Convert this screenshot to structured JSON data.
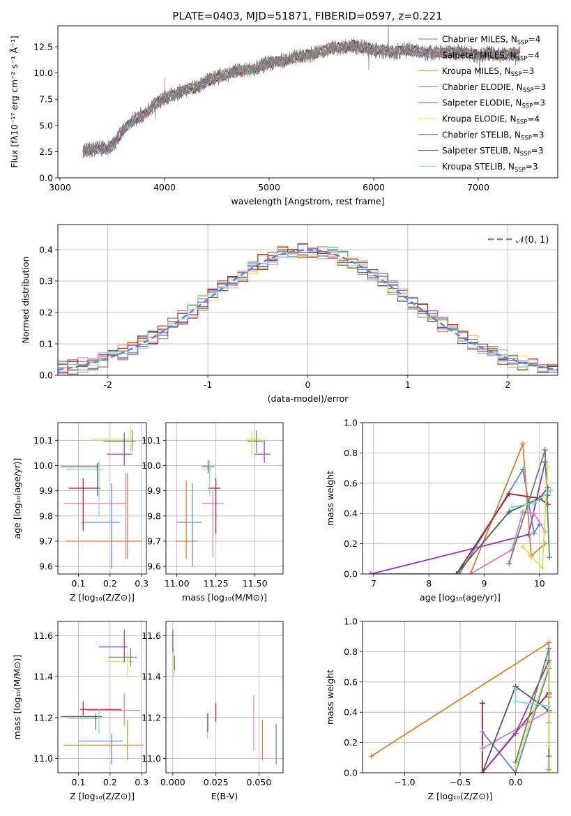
{
  "figure": {
    "title": "PLATE=0403, MJD=51871, FIBERID=0597, z=0.221"
  },
  "chart_data": [
    {
      "id": "spectrum",
      "type": "line",
      "xlabel": "wavelength [Angstrom, rest frame]",
      "ylabel": "Flux [fλ10⁻¹⁷ erg cm⁻² s⁻¹ Å⁻¹]",
      "xlim": [
        2980,
        7760
      ],
      "ylim": [
        0,
        14.5
      ],
      "xticks": [
        3000,
        4000,
        5000,
        6000,
        7000
      ],
      "yticks": [
        0.0,
        2.5,
        5.0,
        7.5,
        10.0,
        12.5
      ],
      "grid": false,
      "legend_placement": "right",
      "data_x_range": [
        3220,
        7400
      ],
      "envelope": {
        "x": [
          3220,
          3300,
          3400,
          3500,
          3600,
          3700,
          3800,
          3900,
          4000,
          4100,
          4200,
          4300,
          4400,
          4500,
          4600,
          4700,
          4800,
          4900,
          5000,
          5100,
          5200,
          5300,
          5400,
          5500,
          5600,
          5700,
          5800,
          5900,
          6000,
          6100,
          6200,
          6300,
          6400,
          6500,
          6600,
          6700,
          6800,
          6900,
          7000,
          7100,
          7200,
          7300,
          7400
        ],
        "y": [
          2.5,
          2.7,
          2.8,
          3.0,
          4.5,
          5.5,
          6.0,
          7.0,
          7.6,
          8.0,
          8.4,
          8.6,
          9.2,
          9.6,
          9.9,
          10.2,
          10.3,
          10.5,
          11.0,
          11.1,
          11.3,
          11.6,
          11.8,
          12.1,
          12.4,
          12.4,
          12.6,
          12.4,
          12.2,
          12.1,
          12.0,
          12.2,
          12.1,
          11.9,
          12.0,
          11.9,
          12.0,
          11.9,
          11.7,
          11.9,
          11.7,
          11.8,
          11.8
        ]
      },
      "series": [
        {
          "name": "Chabrier MILES, N_SSP=4",
          "color": "#5b84d6"
        },
        {
          "name": "Salpeter MILES, N_SSP=4",
          "color": "#e377c2"
        },
        {
          "name": "Kroupa MILES, N_SSP=3",
          "color": "#e07b2a"
        },
        {
          "name": "Chabrier ELODIE, N_SSP=3",
          "color": "#5a8a5a"
        },
        {
          "name": "Salpeter ELODIE, N_SSP=3",
          "color": "#9b30c0"
        },
        {
          "name": "Kroupa ELODIE, N_SSP=4",
          "color": "#d4e84a"
        },
        {
          "name": "Chabrier STELIB, N_SSP=3",
          "color": "#555555"
        },
        {
          "name": "Salpeter STELIB, N_SSP=3",
          "color": "#b0171f"
        },
        {
          "name": "Kroupa STELIB, N_SSP=3",
          "color": "#7fd6d6"
        }
      ]
    },
    {
      "id": "residuals",
      "type": "line",
      "xlabel": "(data-model)/error",
      "ylabel": "Normed distribution",
      "xlim": [
        -2.5,
        2.5
      ],
      "ylim": [
        0,
        0.48
      ],
      "xticks": [
        -2,
        -1,
        0,
        1,
        2
      ],
      "yticks": [
        0.0,
        0.1,
        0.2,
        0.3,
        0.4
      ],
      "grid": true,
      "legend_placement": "top-right",
      "legend": "𝒩(0, 1)",
      "reference": {
        "name": "𝒩(0, 1)",
        "mu": 0,
        "sigma": 1,
        "color": "#5b84d6"
      }
    },
    {
      "id": "z-age",
      "type": "scatter",
      "xlabel": "Z [log₁₀(Z/Z⊙)]",
      "ylabel": "age  [log₁₀(age/yr)]",
      "xlim": [
        0.035,
        0.315
      ],
      "ylim": [
        9.57,
        10.17
      ],
      "xticks": [
        0.1,
        0.2,
        0.3
      ],
      "xtick_labels": [
        "0.1",
        "0.2",
        "0.3"
      ],
      "yticks": [
        9.6,
        9.7,
        9.8,
        9.9,
        10.0,
        10.1
      ],
      "grid": true,
      "points": [
        {
          "color": "#e07b2a",
          "x": 0.18,
          "xerr": 0.12,
          "y": 9.7,
          "yerr": 0.0
        },
        {
          "color": "#5b84d6",
          "x": 0.17,
          "xerr": 0.06,
          "y": 9.775,
          "yerr": 0.0
        },
        {
          "color": "#e377c2",
          "x": 0.155,
          "xerr": 0.1,
          "y": 9.85,
          "yerr": 0.0
        },
        {
          "color": "#b0171f",
          "x": 0.12,
          "xerr": 0.05,
          "y": 9.91,
          "yerr": 0.0
        },
        {
          "color": "#7fd6d6",
          "x": 0.12,
          "xerr": 0.06,
          "y": 9.985,
          "yerr": 0.0
        },
        {
          "color": "#555555",
          "x": 0.105,
          "xerr": 0.06,
          "y": 9.995,
          "yerr": 0.0
        },
        {
          "color": "#9b30c0",
          "x": 0.23,
          "xerr": 0.04,
          "y": 10.045,
          "yerr": 0.0
        },
        {
          "color": "#d4e84a",
          "x": 0.2,
          "xerr": 0.06,
          "y": 10.105,
          "yerr": 0.0
        },
        {
          "color": "#5a8a5a",
          "x": 0.23,
          "xerr": 0.05,
          "y": 10.095,
          "yerr": 0.0
        }
      ],
      "vlines": [
        {
          "color": "#5b84d6",
          "x": 0.205,
          "y0": 9.59,
          "y1": 9.93
        },
        {
          "color": "#e07b2a",
          "x": 0.255,
          "y0": 9.63,
          "y1": 9.97
        },
        {
          "color": "#e377c2",
          "x": 0.25,
          "y0": 9.63,
          "y1": 9.97
        },
        {
          "color": "#b0171f",
          "x": 0.115,
          "y0": 9.74,
          "y1": 9.95
        },
        {
          "color": "#7fd6d6",
          "x": 0.165,
          "y0": 9.8,
          "y1": 10.02
        },
        {
          "color": "#555555",
          "x": 0.16,
          "y0": 9.88,
          "y1": 10.01
        },
        {
          "color": "#9b30c0",
          "x": 0.245,
          "y0": 10.0,
          "y1": 10.13
        },
        {
          "color": "#d4e84a",
          "x": 0.265,
          "y0": 10.05,
          "y1": 10.15
        },
        {
          "color": "#5a8a5a",
          "x": 0.27,
          "y0": 10.06,
          "y1": 10.14
        }
      ]
    },
    {
      "id": "mass-age",
      "type": "scatter",
      "xlabel": "mass [log₁₀(M/M⊙)]",
      "ylabel": "",
      "xlim": [
        10.93,
        11.68
      ],
      "ylim": [
        9.57,
        10.17
      ],
      "xticks": [
        11.0,
        11.25,
        11.5
      ],
      "xtick_labels": [
        "11.00",
        "11.25",
        "11.50"
      ],
      "yticks": [
        9.6,
        9.7,
        9.8,
        9.9,
        10.0,
        10.1
      ],
      "grid": true,
      "points": [
        {
          "color": "#e07b2a",
          "x": 11.06,
          "xerr": 0.07,
          "y": 9.7
        },
        {
          "color": "#5b84d6",
          "x": 11.08,
          "xerr": 0.08,
          "y": 9.775
        },
        {
          "color": "#e377c2",
          "x": 11.23,
          "xerr": 0.07,
          "y": 9.85
        },
        {
          "color": "#b0171f",
          "x": 11.24,
          "xerr": 0.04,
          "y": 9.91
        },
        {
          "color": "#7fd6d6",
          "x": 11.19,
          "xerr": 0.03,
          "y": 9.985
        },
        {
          "color": "#555555",
          "x": 11.2,
          "xerr": 0.04,
          "y": 9.995
        },
        {
          "color": "#9b30c0",
          "x": 11.55,
          "xerr": 0.05,
          "y": 10.045
        },
        {
          "color": "#d4e84a",
          "x": 11.49,
          "xerr": 0.05,
          "y": 10.105
        },
        {
          "color": "#5a8a5a",
          "x": 11.5,
          "xerr": 0.05,
          "y": 10.095
        }
      ],
      "vlines": [
        {
          "color": "#5b84d6",
          "x": 11.1,
          "y0": 9.6,
          "y1": 9.93
        },
        {
          "color": "#e07b2a",
          "x": 11.06,
          "y0": 9.63,
          "y1": 9.94
        },
        {
          "color": "#b0171f",
          "x": 11.25,
          "y0": 9.73,
          "y1": 9.95
        },
        {
          "color": "#e377c2",
          "x": 11.23,
          "y0": 9.64,
          "y1": 9.9
        },
        {
          "color": "#7fd6d6",
          "x": 11.21,
          "y0": 9.88,
          "y1": 10.02
        },
        {
          "color": "#555555",
          "x": 11.2,
          "y0": 9.97,
          "y1": 10.02
        },
        {
          "color": "#9b30c0",
          "x": 11.56,
          "y0": 10.01,
          "y1": 10.1
        },
        {
          "color": "#d4e84a",
          "x": 11.48,
          "y0": 10.04,
          "y1": 10.14
        },
        {
          "color": "#5a8a5a",
          "x": 11.51,
          "y0": 10.05,
          "y1": 10.14
        }
      ]
    },
    {
      "id": "age-weight",
      "type": "line",
      "xlabel": "age  [log₁₀(age/yr)]",
      "ylabel": "mass weight",
      "xlim": [
        6.8,
        10.33
      ],
      "ylim": [
        0,
        1.0
      ],
      "xticks": [
        7,
        8,
        9,
        10
      ],
      "yticks": [
        0.0,
        0.2,
        0.4,
        0.6,
        0.8,
        1.0
      ],
      "grid": true,
      "series": [
        {
          "color": "#9b30c0",
          "x": [
            6.95,
            9.8,
            10.1,
            10.15
          ],
          "y": [
            0.0,
            0.26,
            0.74,
            0.52
          ]
        },
        {
          "color": "#5b84d6",
          "x": [
            6.95,
            8.55,
            9.7,
            9.9,
            10.0
          ],
          "y": [
            0.0,
            0.0,
            0.69,
            0.27,
            0.33
          ]
        },
        {
          "color": "#e07b2a",
          "x": [
            8.75,
            9.7,
            9.85,
            10.1
          ],
          "y": [
            0.0,
            0.86,
            0.12,
            0.2
          ]
        },
        {
          "color": "#e377c2",
          "x": [
            8.75,
            9.5,
            9.7,
            9.9,
            10.1
          ],
          "y": [
            0.0,
            0.16,
            0.41,
            0.4,
            0.28
          ]
        },
        {
          "color": "#b0171f",
          "x": [
            8.5,
            9.45,
            10.0,
            10.15
          ],
          "y": [
            0.0,
            0.53,
            0.5,
            0.46
          ]
        },
        {
          "color": "#555555",
          "x": [
            8.5,
            9.45,
            10.0,
            10.15
          ],
          "y": [
            0.0,
            0.41,
            0.5,
            0.57
          ]
        },
        {
          "color": "#5a8a5a",
          "x": [
            9.45,
            10.1,
            10.18
          ],
          "y": [
            0.07,
            0.82,
            0.11
          ]
        },
        {
          "color": "#d4e84a",
          "x": [
            9.7,
            10.05,
            10.15
          ],
          "y": [
            0.18,
            0.04,
            0.71
          ]
        },
        {
          "color": "#7fd6d6",
          "x": [
            9.5,
            9.9,
            10.2
          ],
          "y": [
            0.44,
            0.47,
            0.55
          ]
        }
      ]
    },
    {
      "id": "z-mass",
      "type": "scatter",
      "xlabel": "Z [log₁₀(Z/Z⊙)]",
      "ylabel": "mass [log₁₀(M/M⊙)]",
      "xlim": [
        0.035,
        0.315
      ],
      "ylim": [
        10.93,
        11.67
      ],
      "xticks": [
        0.1,
        0.2,
        0.3
      ],
      "xtick_labels": [
        "0.1",
        "0.2",
        "0.3"
      ],
      "yticks": [
        11.0,
        11.2,
        11.4,
        11.6
      ],
      "grid": true,
      "points": [
        {
          "color": "#e07b2a",
          "x": 0.18,
          "xerr": 0.125,
          "y": 11.065
        },
        {
          "color": "#5b84d6",
          "x": 0.17,
          "xerr": 0.07,
          "y": 11.085
        },
        {
          "color": "#555555",
          "x": 0.11,
          "xerr": 0.065,
          "y": 11.205
        },
        {
          "color": "#7fd6d6",
          "x": 0.12,
          "xerr": 0.05,
          "y": 11.195
        },
        {
          "color": "#b0171f",
          "x": 0.17,
          "xerr": 0.065,
          "y": 11.24
        },
        {
          "color": "#e377c2",
          "x": 0.21,
          "xerr": 0.085,
          "y": 11.235
        },
        {
          "color": "#d4e84a",
          "x": 0.23,
          "xerr": 0.045,
          "y": 11.475
        },
        {
          "color": "#5a8a5a",
          "x": 0.24,
          "xerr": 0.045,
          "y": 11.495
        },
        {
          "color": "#9b30c0",
          "x": 0.21,
          "xerr": 0.045,
          "y": 11.545
        }
      ],
      "vlines": [
        {
          "color": "#5b84d6",
          "x": 0.205,
          "y0": 10.97,
          "y1": 11.12
        },
        {
          "color": "#e07b2a",
          "x": 0.255,
          "y0": 10.99,
          "y1": 11.19
        },
        {
          "color": "#555555",
          "x": 0.155,
          "y0": 11.14,
          "y1": 11.22
        },
        {
          "color": "#7fd6d6",
          "x": 0.165,
          "y0": 11.12,
          "y1": 11.24
        },
        {
          "color": "#b0171f",
          "x": 0.115,
          "y0": 11.21,
          "y1": 11.28
        },
        {
          "color": "#e377c2",
          "x": 0.245,
          "y0": 11.16,
          "y1": 11.32
        },
        {
          "color": "#d4e84a",
          "x": 0.255,
          "y0": 11.4,
          "y1": 11.52
        },
        {
          "color": "#5a8a5a",
          "x": 0.265,
          "y0": 11.45,
          "y1": 11.54
        },
        {
          "color": "#9b30c0",
          "x": 0.245,
          "y0": 11.47,
          "y1": 11.63
        }
      ]
    },
    {
      "id": "ebv-mass",
      "type": "scatter",
      "xlabel": "E(B-V)",
      "ylabel": "",
      "xlim": [
        -0.004,
        0.064
      ],
      "ylim": [
        10.93,
        11.67
      ],
      "xticks": [
        0.0,
        0.025,
        0.05
      ],
      "xtick_labels": [
        "0.000",
        "0.025",
        "0.050"
      ],
      "yticks": [
        11.0,
        11.2,
        11.4,
        11.6
      ],
      "grid": true,
      "vlines": [
        {
          "color": "#9b30c0",
          "x": 0.0,
          "y0": 11.52,
          "y1": 11.63
        },
        {
          "color": "#d4e84a",
          "x": 0.0005,
          "y0": 11.4,
          "y1": 11.54
        },
        {
          "color": "#5a8a5a",
          "x": 0.001,
          "y0": 11.43,
          "y1": 11.5
        },
        {
          "color": "#7fd6d6",
          "x": 0.02,
          "y0": 11.1,
          "y1": 11.22
        },
        {
          "color": "#555555",
          "x": 0.0203,
          "y0": 11.13,
          "y1": 11.22
        },
        {
          "color": "#b0171f",
          "x": 0.025,
          "y0": 11.18,
          "y1": 11.27
        },
        {
          "color": "#e377c2",
          "x": 0.047,
          "y0": 11.04,
          "y1": 11.31
        },
        {
          "color": "#e07b2a",
          "x": 0.052,
          "y0": 10.99,
          "y1": 11.19
        },
        {
          "color": "#5b84d6",
          "x": 0.06,
          "y0": 10.97,
          "y1": 11.17
        }
      ]
    },
    {
      "id": "z-weight",
      "type": "line",
      "xlabel": "Z [log₁₀(Z/Z⊙)]",
      "ylabel": "mass weight",
      "xlim": [
        -1.38,
        0.38
      ],
      "ylim": [
        0,
        1.0
      ],
      "xticks": [
        -1.0,
        -0.5,
        0.0
      ],
      "xtick_labels": [
        "−1.0",
        "−0.5",
        "0.0"
      ],
      "yticks": [
        0.0,
        0.2,
        0.4,
        0.6,
        0.8,
        1.0
      ],
      "grid": true,
      "series": [
        {
          "color": "#e07b2a",
          "x": [
            -1.3,
            0.3,
            0.3,
            0.3
          ],
          "y": [
            0.11,
            0.86,
            0.02,
            0.02
          ]
        },
        {
          "color": "#b0171f",
          "x": [
            -0.3,
            -0.3,
            0.3,
            0.3
          ],
          "y": [
            0.46,
            0.0,
            0.53,
            0.5
          ]
        },
        {
          "color": "#5b84d6",
          "x": [
            -0.3,
            0.0,
            0.3,
            0.3
          ],
          "y": [
            0.27,
            0.0,
            0.69,
            0.33
          ]
        },
        {
          "color": "#e377c2",
          "x": [
            -0.3,
            0.3,
            0.3,
            0.3
          ],
          "y": [
            0.16,
            0.41,
            0.4,
            0.73
          ]
        },
        {
          "color": "#9b30c0",
          "x": [
            -0.3,
            0.0,
            0.3,
            0.3
          ],
          "y": [
            0.0,
            0.26,
            0.74,
            0.52
          ]
        },
        {
          "color": "#555555",
          "x": [
            -0.3,
            0.0,
            0.3,
            0.3
          ],
          "y": [
            0.0,
            0.57,
            0.41,
            0.5
          ]
        },
        {
          "color": "#5a8a5a",
          "x": [
            0.0,
            0.3,
            0.3
          ],
          "y": [
            0.07,
            0.82,
            0.11
          ]
        },
        {
          "color": "#d4e84a",
          "x": [
            0.0,
            0.3,
            0.3
          ],
          "y": [
            0.04,
            0.71,
            0.18
          ]
        },
        {
          "color": "#7fd6d6",
          "x": [
            0.0,
            0.0,
            0.3
          ],
          "y": [
            0.55,
            0.47,
            0.44
          ]
        }
      ]
    }
  ]
}
